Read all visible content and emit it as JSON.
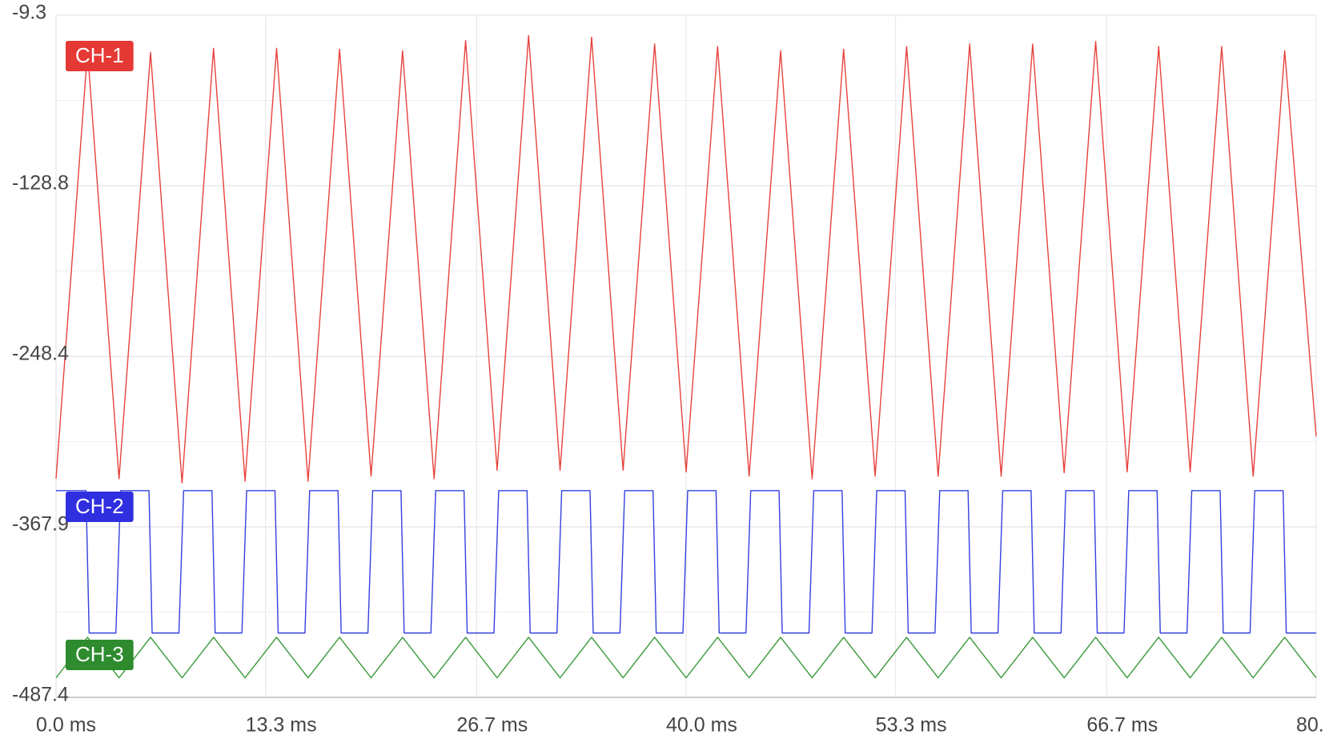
{
  "chart_data": {
    "type": "line",
    "xlim": [
      0,
      80
    ],
    "ylim": [
      -487.4,
      -9.3
    ],
    "yticks": [
      -487.4,
      -367.9,
      -248.4,
      -128.8,
      -9.3
    ],
    "xticks": [
      {
        "value": 0,
        "label": "0.0 ms"
      },
      {
        "value": 13.3,
        "label": "13.3 ms"
      },
      {
        "value": 26.7,
        "label": "26.7 ms"
      },
      {
        "value": 40,
        "label": "40.0 ms"
      },
      {
        "value": 53.3,
        "label": "53.3 ms"
      },
      {
        "value": 66.7,
        "label": "66.7 ms"
      },
      {
        "value": 80,
        "label": "80."
      }
    ],
    "grid": true,
    "series": [
      {
        "name": "CH-1",
        "color": "#e8423c",
        "x": [
          0,
          2,
          4,
          6,
          8,
          10,
          12,
          14,
          16,
          18,
          20,
          22,
          24,
          26,
          28,
          30,
          32,
          34,
          36,
          38,
          40,
          42,
          44,
          46,
          48,
          50,
          52,
          54,
          56,
          58,
          60,
          62,
          64,
          66,
          68,
          70,
          72,
          74,
          76,
          78,
          80
        ],
        "values": [
          -334.2,
          -34.2,
          -334.2,
          -35.4,
          -337.1,
          -32.5,
          -335.9,
          -32.5,
          -335.9,
          -33.1,
          -332.4,
          -34.2,
          -334.2,
          -27.1,
          -328.2,
          -23.5,
          -328.2,
          -24.7,
          -328.2,
          -29.5,
          -329.4,
          -31.3,
          -332.4,
          -34.2,
          -334.2,
          -33.1,
          -332.4,
          -31.3,
          -332.4,
          -29.5,
          -332.4,
          -29.5,
          -330.0,
          -27.7,
          -329.4,
          -31.3,
          -329.4,
          -31.3,
          -332.4,
          -34.2,
          -304.5
        ]
      },
      {
        "name": "CH-2",
        "color": "#3340dd",
        "x": [
          0,
          1.9,
          2.1,
          3.8,
          4.1,
          5.9,
          6.1,
          7.8,
          8.1,
          9.9,
          10.1,
          11.8,
          12.1,
          13.9,
          14.1,
          15.8,
          16.1,
          17.9,
          18.1,
          19.8,
          20.1,
          21.9,
          22.1,
          23.8,
          24.1,
          25.9,
          26.1,
          27.8,
          28.1,
          29.9,
          30.1,
          31.8,
          32.1,
          33.9,
          34.1,
          35.8,
          36.1,
          37.9,
          38.1,
          39.8,
          40.1,
          41.9,
          42.1,
          43.8,
          44.1,
          45.9,
          46.1,
          47.8,
          48.1,
          49.9,
          50.1,
          51.8,
          52.1,
          53.9,
          54.1,
          55.8,
          56.1,
          57.9,
          58.1,
          59.8,
          60.1,
          61.9,
          62.1,
          63.8,
          64.1,
          65.9,
          66.1,
          67.8,
          68.1,
          69.9,
          70.1,
          71.8,
          72.1,
          73.9,
          74.1,
          75.8,
          76.1,
          77.9,
          78.1,
          80
        ],
        "values": [
          -342.5,
          -342.5,
          -442.3,
          -442.3,
          -342.5,
          -342.5,
          -442.3,
          -442.3,
          -342.5,
          -342.5,
          -442.3,
          -442.3,
          -342.5,
          -342.5,
          -442.3,
          -442.3,
          -342.5,
          -342.5,
          -442.3,
          -442.3,
          -342.5,
          -342.5,
          -442.3,
          -442.3,
          -342.5,
          -342.5,
          -442.3,
          -442.3,
          -342.5,
          -342.5,
          -442.3,
          -442.3,
          -342.5,
          -342.5,
          -442.3,
          -442.3,
          -342.5,
          -342.5,
          -442.3,
          -442.3,
          -342.5,
          -342.5,
          -442.3,
          -442.3,
          -342.5,
          -342.5,
          -442.3,
          -442.3,
          -342.5,
          -342.5,
          -442.3,
          -442.3,
          -342.5,
          -342.5,
          -442.3,
          -442.3,
          -342.5,
          -342.5,
          -442.3,
          -442.3,
          -342.5,
          -342.5,
          -442.3,
          -442.3,
          -342.5,
          -342.5,
          -442.3,
          -442.3,
          -342.5,
          -342.5,
          -442.3,
          -442.3,
          -342.5,
          -342.5,
          -442.3,
          -442.3,
          -342.5,
          -342.5,
          -442.3,
          -442.3
        ]
      },
      {
        "name": "CH-3",
        "color": "#3a9a3a",
        "x": [
          0,
          2,
          4,
          6,
          8,
          10,
          12,
          14,
          16,
          18,
          20,
          22,
          24,
          26,
          28,
          30,
          32,
          34,
          36,
          38,
          40,
          42,
          44,
          46,
          48,
          50,
          52,
          54,
          56,
          58,
          60,
          62,
          64,
          66,
          68,
          70,
          72,
          74,
          76,
          78,
          80
        ],
        "values": [
          -473.7,
          -445.3,
          -473.7,
          -445.3,
          -473.7,
          -445.3,
          -473.7,
          -445.3,
          -473.7,
          -445.3,
          -473.7,
          -445.3,
          -473.7,
          -445.3,
          -473.7,
          -445.3,
          -473.7,
          -445.3,
          -473.7,
          -445.3,
          -473.7,
          -445.3,
          -473.7,
          -445.3,
          -473.7,
          -445.3,
          -473.7,
          -445.3,
          -473.7,
          -445.3,
          -473.7,
          -445.3,
          -473.7,
          -445.3,
          -473.7,
          -445.3,
          -473.7,
          -445.3,
          -473.7,
          -445.3,
          -473.7
        ]
      }
    ]
  }
}
